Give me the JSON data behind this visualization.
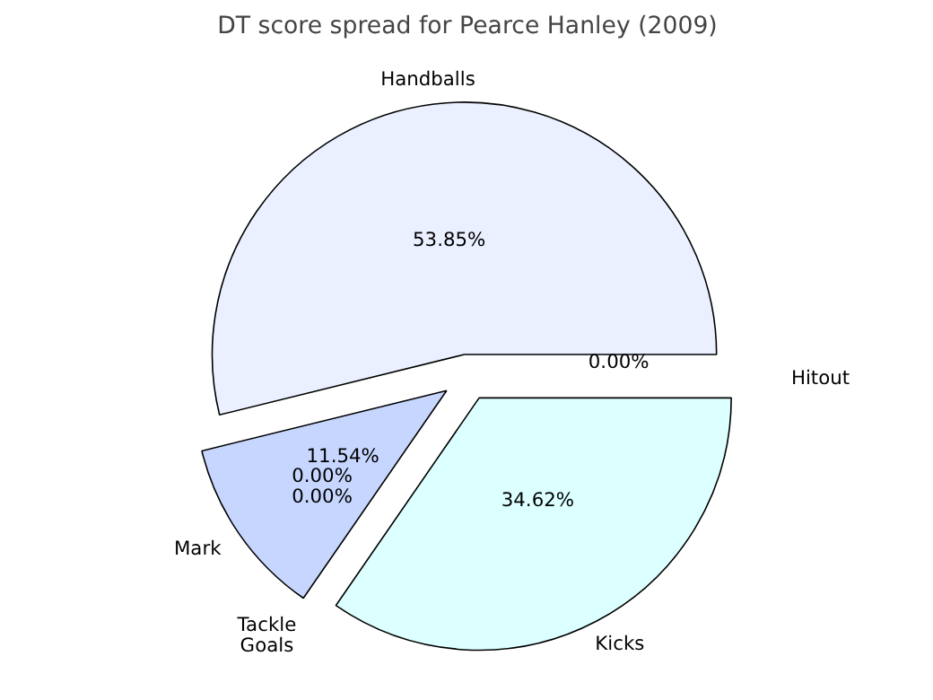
{
  "chart_data": {
    "type": "pie",
    "title": "DT score spread for Pearce Hanley (2009)",
    "categories": [
      "Handballs",
      "Mark",
      "Tackle",
      "Goals",
      "Kicks",
      "Hitout"
    ],
    "values": [
      53.85,
      11.54,
      0,
      0,
      34.62,
      0
    ],
    "value_labels": [
      "53.85%",
      "11.54%",
      "0.00%",
      "0.00%",
      "34.62%",
      "0.00%"
    ],
    "colors": [
      "#eaf0ff",
      "#c6d6ff",
      "#b0c4de",
      "#a0b8ff",
      "#dcffff",
      "#e0e8ff"
    ]
  }
}
